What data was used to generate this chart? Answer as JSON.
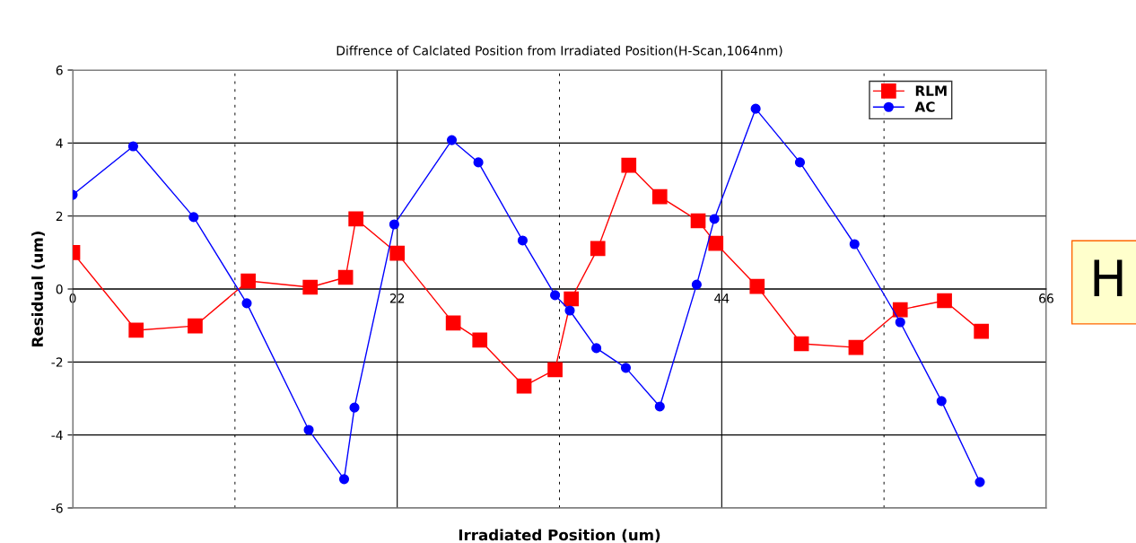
{
  "chart_data": {
    "type": "line",
    "title": "Diffrence of Calclated Position from Irradiated Position(H-Scan,1064nm)",
    "xlabel": "Irradiated Position (um)",
    "ylabel": "Residual (um)",
    "series": [
      {
        "name": "RLM",
        "color": "#ff0000",
        "marker": "square",
        "x": [
          0,
          4.3,
          8.3,
          11.9,
          16.1,
          18.5,
          19.2,
          22.0,
          25.8,
          27.6,
          30.6,
          32.7,
          33.8,
          35.6,
          37.7,
          39.8,
          42.4,
          43.6,
          46.4,
          49.4,
          53.1,
          56.1,
          59.1,
          61.6
        ],
        "values": [
          1.0,
          -1.13,
          -1.01,
          0.22,
          0.05,
          0.32,
          1.92,
          0.98,
          -0.93,
          -1.4,
          -2.66,
          -2.21,
          -0.27,
          1.11,
          3.39,
          2.53,
          1.87,
          1.25,
          0.07,
          -1.5,
          -1.6,
          -0.57,
          -0.32,
          -1.16
        ]
      },
      {
        "name": "AC",
        "color": "#0000ff",
        "marker": "circle",
        "x": [
          0,
          4.1,
          8.2,
          11.8,
          16.0,
          18.4,
          19.1,
          21.8,
          25.7,
          27.5,
          30.5,
          32.7,
          33.7,
          35.5,
          37.5,
          39.8,
          42.3,
          43.5,
          46.3,
          49.3,
          53.0,
          56.1,
          58.9,
          61.5
        ],
        "values": [
          2.58,
          3.91,
          1.97,
          -0.39,
          -3.86,
          -5.21,
          -3.25,
          1.77,
          4.08,
          3.47,
          1.33,
          -0.17,
          -0.59,
          -1.62,
          -2.16,
          -3.22,
          0.12,
          1.92,
          4.94,
          3.47,
          1.23,
          -0.91,
          -3.07,
          -5.29
        ]
      }
    ],
    "xlim": [
      0,
      66
    ],
    "xticks": [
      0,
      {
        "value": 11,
        "label": null
      },
      22,
      {
        "value": 33,
        "label": null
      },
      44,
      {
        "value": 55,
        "label": null
      },
      66
    ],
    "ylim": [
      -6,
      6
    ],
    "yticks": [
      -6,
      -4,
      -2,
      0,
      2,
      4,
      6
    ],
    "grid": true,
    "legend": "top right",
    "line_style": "solid",
    "annotations": [
      "H"
    ]
  }
}
